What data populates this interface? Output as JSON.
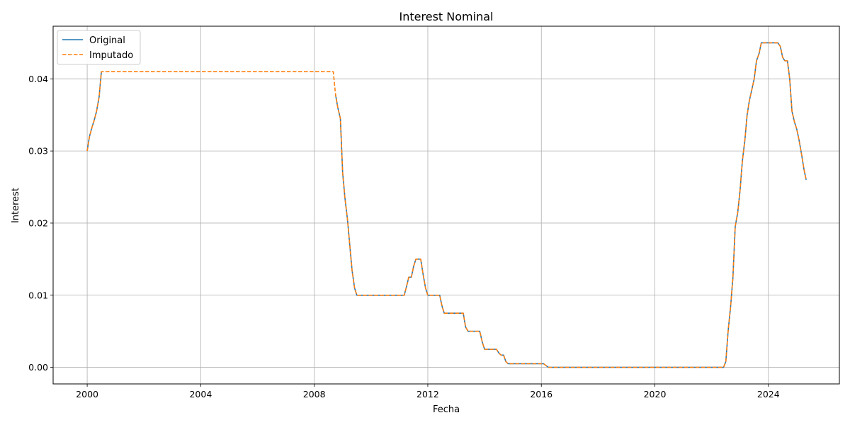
{
  "chart_data": {
    "type": "line",
    "title": "Interest Nominal",
    "xlabel": "Fecha",
    "ylabel": "Interest",
    "xlim": [
      1998.8,
      2026.5
    ],
    "ylim": [
      -0.0023,
      0.0473
    ],
    "xticks": [
      2000,
      2004,
      2008,
      2012,
      2016,
      2020,
      2024
    ],
    "xtick_labels": [
      "2000",
      "2004",
      "2008",
      "2012",
      "2016",
      "2020",
      "2024"
    ],
    "yticks": [
      0.0,
      0.01,
      0.02,
      0.03,
      0.04
    ],
    "ytick_labels": [
      "0.00",
      "0.01",
      "0.02",
      "0.03",
      "0.04"
    ],
    "grid": true,
    "legend_position": "top-left",
    "series": [
      {
        "name": "Original",
        "color": "#1f77b4",
        "style": "solid",
        "segments": [
          [
            [
              2000.0,
              0.03
            ],
            [
              2000.08,
              0.032
            ],
            [
              2000.17,
              0.0333
            ],
            [
              2000.25,
              0.0343
            ],
            [
              2000.33,
              0.0355
            ],
            [
              2000.42,
              0.0375
            ],
            [
              2000.5,
              0.041
            ]
          ],
          [
            [
              2008.75,
              0.0378
            ],
            [
              2008.83,
              0.036
            ],
            [
              2008.92,
              0.0345
            ],
            [
              2009.0,
              0.027
            ],
            [
              2009.08,
              0.0235
            ],
            [
              2009.17,
              0.0205
            ],
            [
              2009.25,
              0.017
            ],
            [
              2009.33,
              0.0135
            ],
            [
              2009.42,
              0.011
            ],
            [
              2009.5,
              0.01
            ],
            [
              2011.17,
              0.01
            ],
            [
              2011.25,
              0.0112
            ],
            [
              2011.33,
              0.0125
            ],
            [
              2011.42,
              0.0125
            ],
            [
              2011.5,
              0.014
            ],
            [
              2011.58,
              0.015
            ],
            [
              2011.75,
              0.015
            ],
            [
              2011.83,
              0.013
            ],
            [
              2011.92,
              0.011
            ],
            [
              2012.0,
              0.01
            ],
            [
              2012.42,
              0.01
            ],
            [
              2012.5,
              0.0085
            ],
            [
              2012.58,
              0.0075
            ],
            [
              2013.25,
              0.0075
            ],
            [
              2013.33,
              0.0056
            ],
            [
              2013.42,
              0.005
            ],
            [
              2013.83,
              0.005
            ],
            [
              2013.92,
              0.0035
            ],
            [
              2014.0,
              0.0025
            ],
            [
              2014.42,
              0.0025
            ],
            [
              2014.5,
              0.002
            ],
            [
              2014.58,
              0.0017
            ],
            [
              2014.67,
              0.0017
            ],
            [
              2014.75,
              0.0008
            ],
            [
              2014.83,
              0.0005
            ],
            [
              2016.0,
              0.0005
            ],
            [
              2016.08,
              0.0005
            ],
            [
              2016.25,
              0.0
            ],
            [
              2022.42,
              0.0
            ],
            [
              2022.5,
              0.0008
            ],
            [
              2022.58,
              0.005
            ],
            [
              2022.67,
              0.0085
            ],
            [
              2022.75,
              0.0125
            ],
            [
              2022.83,
              0.0195
            ],
            [
              2022.92,
              0.0215
            ],
            [
              2023.0,
              0.0245
            ],
            [
              2023.08,
              0.0285
            ],
            [
              2023.17,
              0.0315
            ],
            [
              2023.25,
              0.035
            ],
            [
              2023.33,
              0.037
            ],
            [
              2023.5,
              0.04
            ],
            [
              2023.58,
              0.0425
            ],
            [
              2023.67,
              0.0435
            ],
            [
              2023.75,
              0.045
            ],
            [
              2024.33,
              0.045
            ],
            [
              2024.42,
              0.0445
            ],
            [
              2024.5,
              0.043
            ],
            [
              2024.58,
              0.0425
            ],
            [
              2024.67,
              0.0425
            ],
            [
              2024.75,
              0.04
            ],
            [
              2024.83,
              0.0355
            ],
            [
              2024.92,
              0.034
            ],
            [
              2025.0,
              0.033
            ],
            [
              2025.08,
              0.0315
            ],
            [
              2025.17,
              0.0295
            ],
            [
              2025.25,
              0.0275
            ],
            [
              2025.33,
              0.026
            ]
          ]
        ]
      },
      {
        "name": "Imputado",
        "color": "#ff7f0e",
        "style": "dashed",
        "segments": [
          [
            [
              2000.0,
              0.03
            ],
            [
              2000.08,
              0.032
            ],
            [
              2000.17,
              0.0333
            ],
            [
              2000.25,
              0.0343
            ],
            [
              2000.33,
              0.0355
            ],
            [
              2000.42,
              0.0375
            ],
            [
              2000.5,
              0.041
            ],
            [
              2008.67,
              0.041
            ],
            [
              2008.75,
              0.0378
            ],
            [
              2008.83,
              0.036
            ],
            [
              2008.92,
              0.0345
            ],
            [
              2009.0,
              0.027
            ],
            [
              2009.08,
              0.0235
            ],
            [
              2009.17,
              0.0205
            ],
            [
              2009.25,
              0.017
            ],
            [
              2009.33,
              0.0135
            ],
            [
              2009.42,
              0.011
            ],
            [
              2009.5,
              0.01
            ],
            [
              2011.17,
              0.01
            ],
            [
              2011.25,
              0.0112
            ],
            [
              2011.33,
              0.0125
            ],
            [
              2011.42,
              0.0125
            ],
            [
              2011.5,
              0.014
            ],
            [
              2011.58,
              0.015
            ],
            [
              2011.75,
              0.015
            ],
            [
              2011.83,
              0.013
            ],
            [
              2011.92,
              0.011
            ],
            [
              2012.0,
              0.01
            ],
            [
              2012.42,
              0.01
            ],
            [
              2012.5,
              0.0085
            ],
            [
              2012.58,
              0.0075
            ],
            [
              2013.25,
              0.0075
            ],
            [
              2013.33,
              0.0056
            ],
            [
              2013.42,
              0.005
            ],
            [
              2013.83,
              0.005
            ],
            [
              2013.92,
              0.0035
            ],
            [
              2014.0,
              0.0025
            ],
            [
              2014.42,
              0.0025
            ],
            [
              2014.5,
              0.002
            ],
            [
              2014.58,
              0.0017
            ],
            [
              2014.67,
              0.0017
            ],
            [
              2014.75,
              0.0008
            ],
            [
              2014.83,
              0.0005
            ],
            [
              2016.0,
              0.0005
            ],
            [
              2016.08,
              0.0005
            ],
            [
              2016.25,
              0.0
            ],
            [
              2022.42,
              0.0
            ],
            [
              2022.5,
              0.0008
            ],
            [
              2022.58,
              0.005
            ],
            [
              2022.67,
              0.0085
            ],
            [
              2022.75,
              0.0125
            ],
            [
              2022.83,
              0.0195
            ],
            [
              2022.92,
              0.0215
            ],
            [
              2023.0,
              0.0245
            ],
            [
              2023.08,
              0.0285
            ],
            [
              2023.17,
              0.0315
            ],
            [
              2023.25,
              0.035
            ],
            [
              2023.33,
              0.037
            ],
            [
              2023.5,
              0.04
            ],
            [
              2023.58,
              0.0425
            ],
            [
              2023.67,
              0.0435
            ],
            [
              2023.75,
              0.045
            ],
            [
              2024.33,
              0.045
            ],
            [
              2024.42,
              0.0445
            ],
            [
              2024.5,
              0.043
            ],
            [
              2024.58,
              0.0425
            ],
            [
              2024.67,
              0.0425
            ],
            [
              2024.75,
              0.04
            ],
            [
              2024.83,
              0.0355
            ],
            [
              2024.92,
              0.034
            ],
            [
              2025.0,
              0.033
            ],
            [
              2025.08,
              0.0315
            ],
            [
              2025.17,
              0.0295
            ],
            [
              2025.25,
              0.0275
            ],
            [
              2025.33,
              0.026
            ]
          ]
        ]
      }
    ]
  }
}
